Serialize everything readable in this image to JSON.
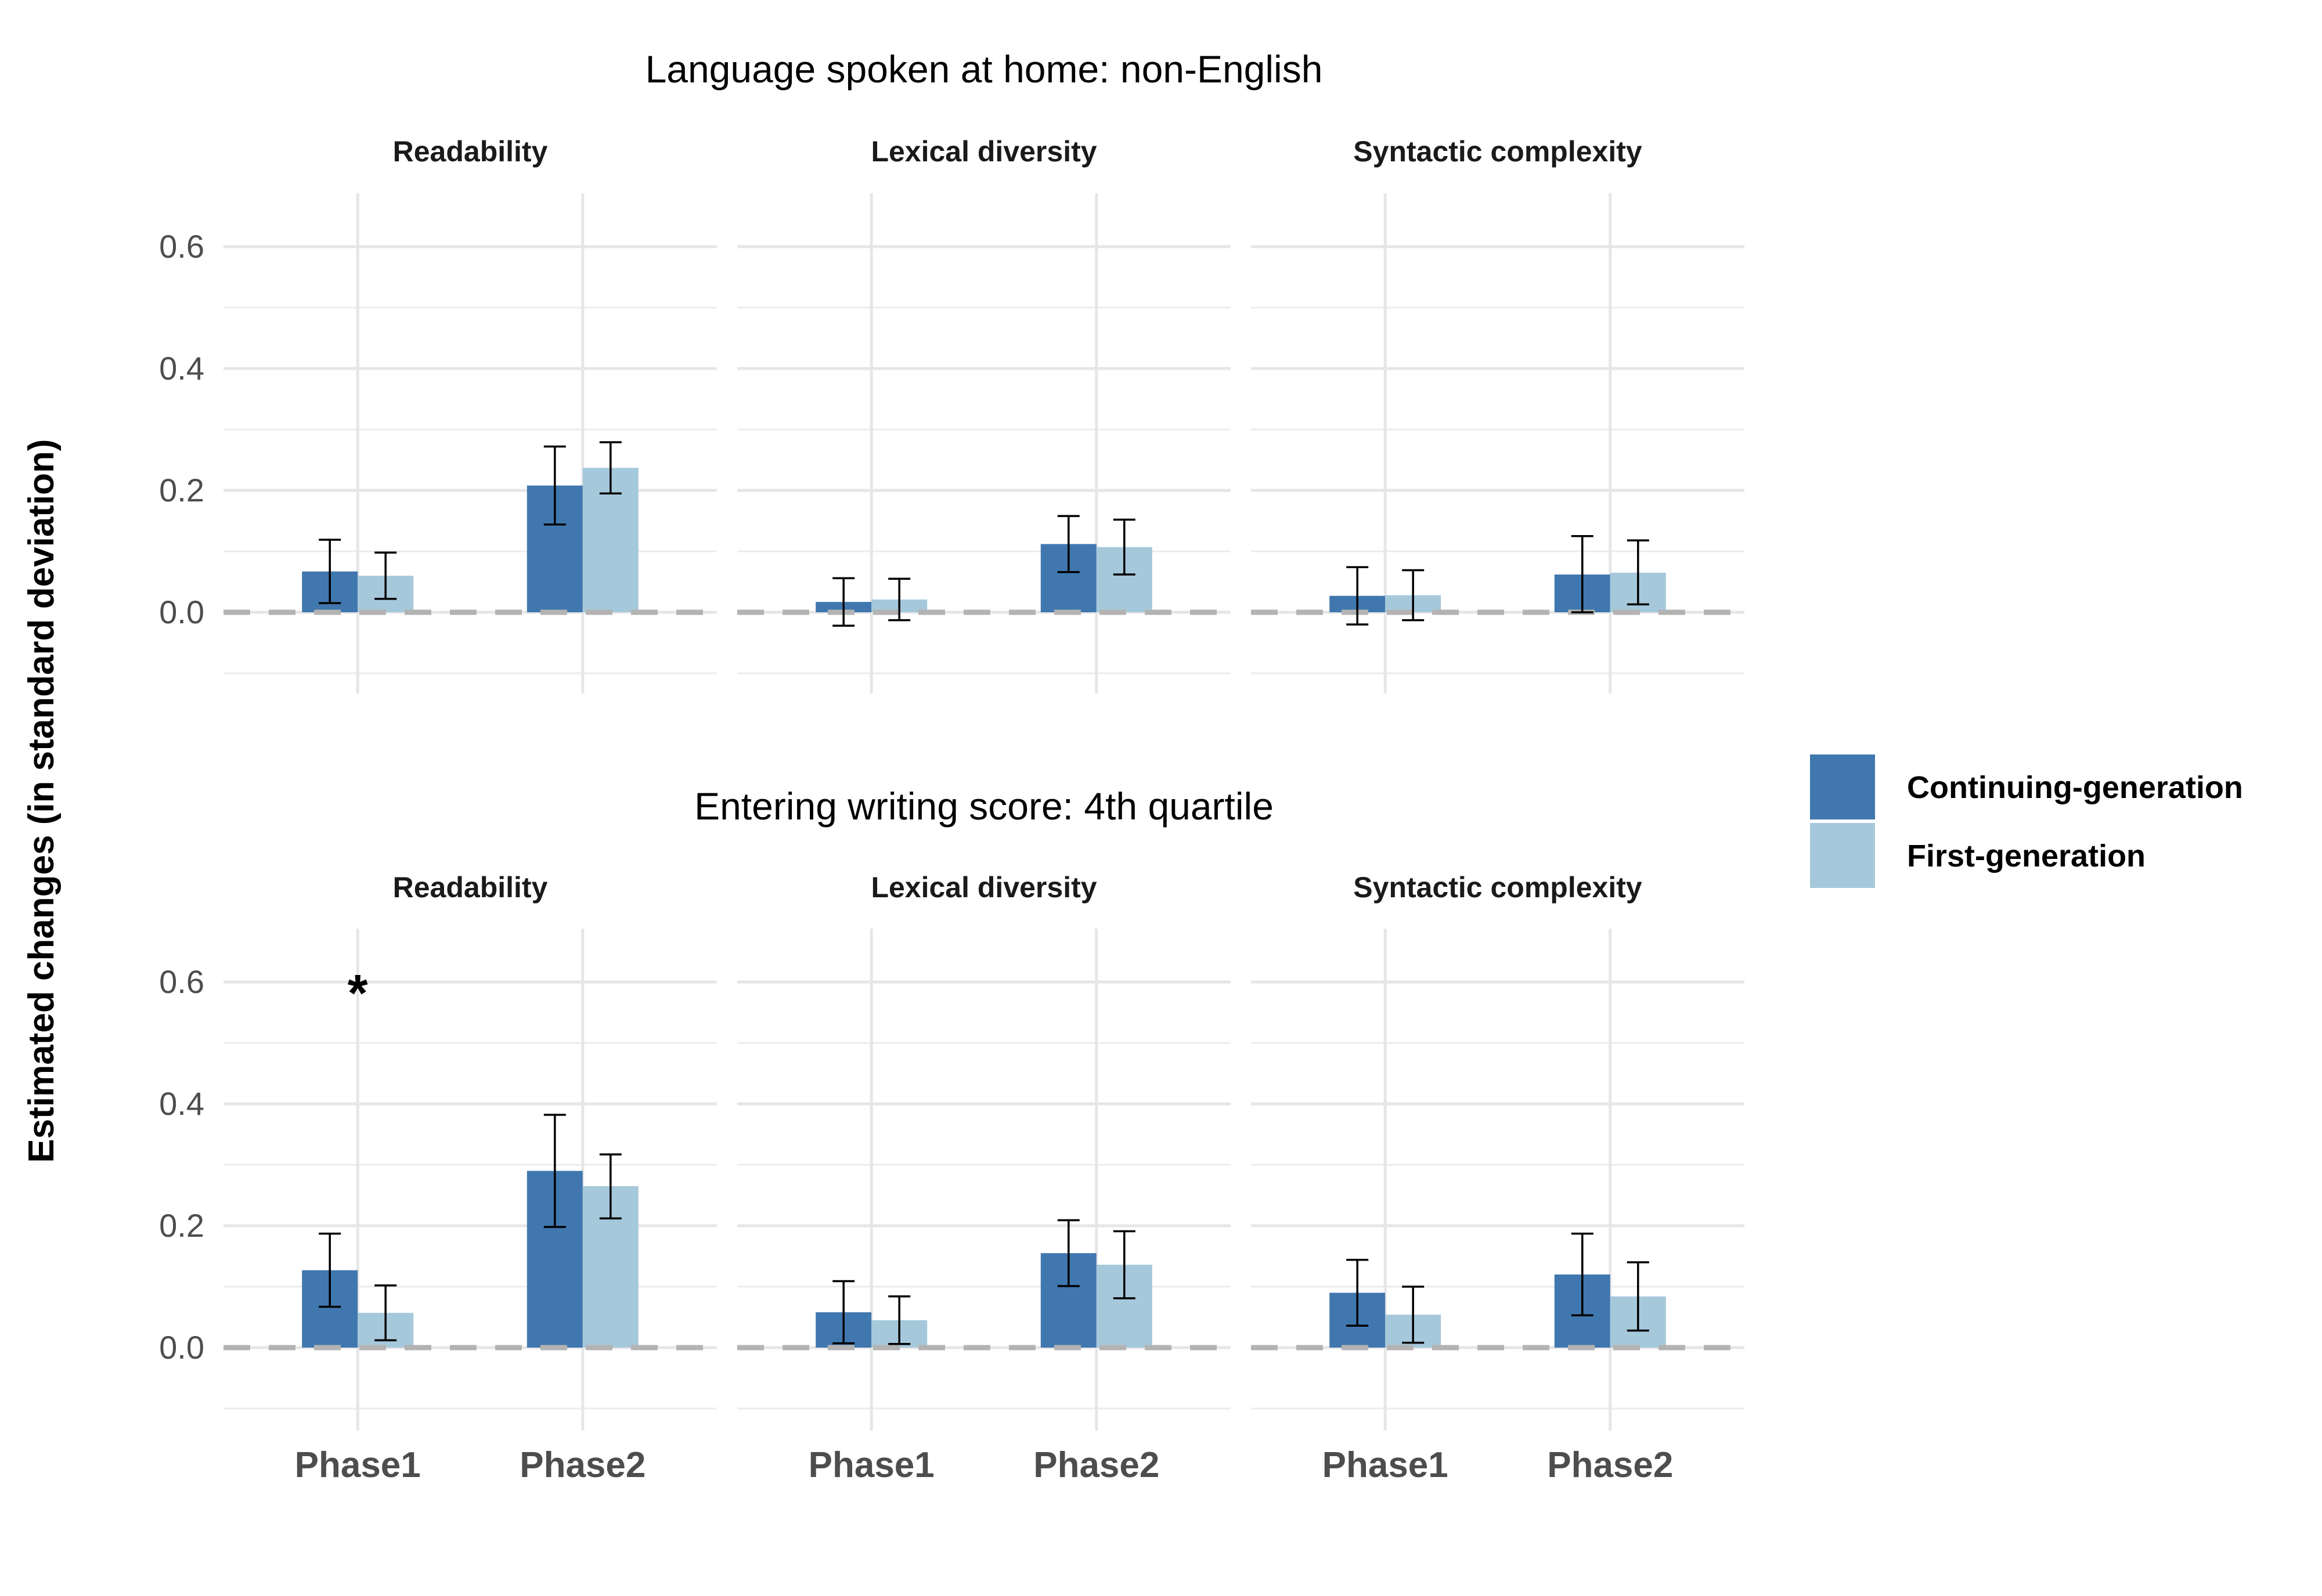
{
  "chart_data": {
    "type": "bar",
    "ylabel": "Estimated changes (in standard deviation)",
    "ylim": [
      -0.13,
      0.69
    ],
    "yticks": [
      "0.0",
      "0.2",
      "0.4",
      "0.6"
    ],
    "ytick_values": [
      0.0,
      0.2,
      0.4,
      0.6
    ],
    "categories": [
      "Phase1",
      "Phase2"
    ],
    "reference_line": 0,
    "grid": true,
    "legend": {
      "position": "right",
      "items": [
        {
          "name": "Continuing-generation",
          "color": "#4177AF"
        },
        {
          "name": "First-generation",
          "color": "#A6C8DB"
        }
      ]
    },
    "rows": [
      {
        "title": "Language spoken at home: non-English",
        "facets": [
          {
            "strip": "Readability",
            "series": [
              {
                "name": "Continuing-generation",
                "values": [
                  0.067,
                  0.208
                ],
                "lower": [
                  0.015,
                  0.144
                ],
                "upper": [
                  0.119,
                  0.272
                ]
              },
              {
                "name": "First-generation",
                "values": [
                  0.06,
                  0.237
                ],
                "lower": [
                  0.022,
                  0.195
                ],
                "upper": [
                  0.098,
                  0.279
                ]
              }
            ],
            "annotations": []
          },
          {
            "strip": "Lexical diversity",
            "series": [
              {
                "name": "Continuing-generation",
                "values": [
                  0.017,
                  0.112
                ],
                "lower": [
                  -0.022,
                  0.066
                ],
                "upper": [
                  0.056,
                  0.158
                ]
              },
              {
                "name": "First-generation",
                "values": [
                  0.021,
                  0.107
                ],
                "lower": [
                  -0.013,
                  0.062
                ],
                "upper": [
                  0.055,
                  0.152
                ]
              }
            ],
            "annotations": []
          },
          {
            "strip": "Syntactic complexity",
            "series": [
              {
                "name": "Continuing-generation",
                "values": [
                  0.027,
                  0.062
                ],
                "lower": [
                  -0.02,
                  0.0
                ],
                "upper": [
                  0.074,
                  0.125
                ]
              },
              {
                "name": "First-generation",
                "values": [
                  0.028,
                  0.065
                ],
                "lower": [
                  -0.013,
                  0.013
                ],
                "upper": [
                  0.069,
                  0.118
                ]
              }
            ],
            "annotations": []
          }
        ]
      },
      {
        "title": "Entering writing score: 4th quartile",
        "facets": [
          {
            "strip": "Readability",
            "series": [
              {
                "name": "Continuing-generation",
                "values": [
                  0.127,
                  0.29
                ],
                "lower": [
                  0.067,
                  0.198
                ],
                "upper": [
                  0.187,
                  0.382
                ]
              },
              {
                "name": "First-generation",
                "values": [
                  0.057,
                  0.265
                ],
                "lower": [
                  0.012,
                  0.212
                ],
                "upper": [
                  0.102,
                  0.317
                ]
              }
            ],
            "annotations": [
              {
                "text": "*",
                "category": "Phase1",
                "y": 0.6
              }
            ]
          },
          {
            "strip": "Lexical diversity",
            "series": [
              {
                "name": "Continuing-generation",
                "values": [
                  0.058,
                  0.155
                ],
                "lower": [
                  0.007,
                  0.101
                ],
                "upper": [
                  0.109,
                  0.209
                ]
              },
              {
                "name": "First-generation",
                "values": [
                  0.045,
                  0.136
                ],
                "lower": [
                  0.006,
                  0.081
                ],
                "upper": [
                  0.084,
                  0.191
                ]
              }
            ],
            "annotations": []
          },
          {
            "strip": "Syntactic complexity",
            "series": [
              {
                "name": "Continuing-generation",
                "values": [
                  0.09,
                  0.12
                ],
                "lower": [
                  0.036,
                  0.053
                ],
                "upper": [
                  0.144,
                  0.187
                ]
              },
              {
                "name": "First-generation",
                "values": [
                  0.054,
                  0.084
                ],
                "lower": [
                  0.008,
                  0.028
                ],
                "upper": [
                  0.1,
                  0.14
                ]
              }
            ],
            "annotations": []
          }
        ]
      }
    ]
  }
}
